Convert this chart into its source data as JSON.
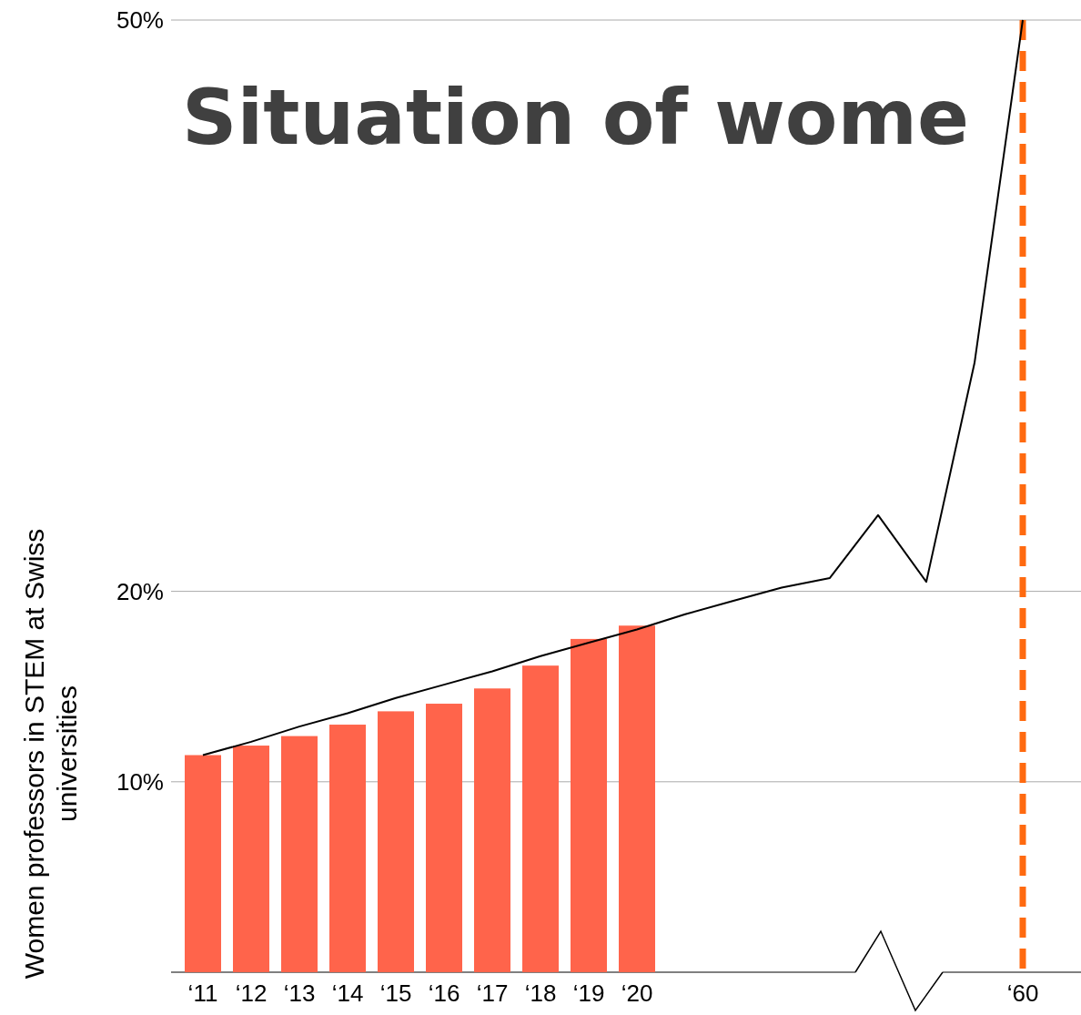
{
  "chart_data": {
    "type": "bar",
    "title": "Situation of wome",
    "ylabel": "Women professors in STEM at Swiss universities",
    "categories": [
      "‘11",
      "‘12",
      "‘13",
      "‘14",
      "‘15",
      "‘16",
      "‘17",
      "‘18",
      "‘19",
      "‘20",
      null,
      null,
      null,
      null,
      null,
      null,
      null,
      "‘60"
    ],
    "ylim": [
      0,
      50
    ],
    "yticks": [
      {
        "value": 10,
        "label": "10%"
      },
      {
        "value": 20,
        "label": "20%"
      },
      {
        "value": 50,
        "label": "50%"
      }
    ],
    "grid": "y",
    "series": [
      {
        "color": "#ff644b",
        "values": [
          11.4,
          11.9,
          12.4,
          13.0,
          13.7,
          14.1,
          14.9,
          16.1,
          17.5,
          18.2,
          null,
          null,
          null,
          null,
          null,
          null,
          null,
          null
        ]
      },
      {
        "type": "line",
        "color": "#000000",
        "values": [
          11.4,
          12.1,
          12.9,
          13.6,
          14.4,
          15.1,
          15.8,
          16.6,
          17.3,
          18.0,
          18.8,
          19.5,
          20.2,
          20.7,
          24,
          20.5,
          32,
          50
        ]
      }
    ],
    "ref_lines": [
      {
        "axis": "x",
        "value": "‘60",
        "color": "#ff6a10",
        "line_style": "dashed"
      }
    ]
  }
}
